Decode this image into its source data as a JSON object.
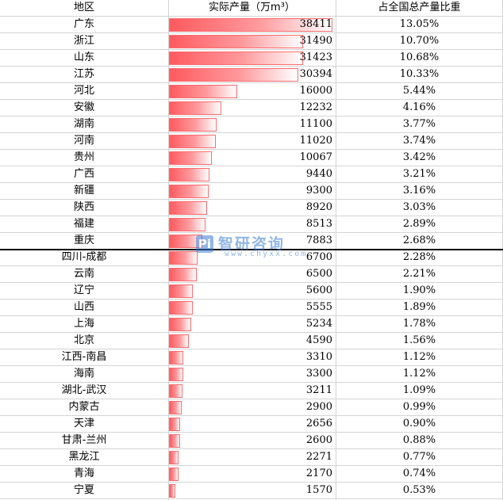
{
  "table": {
    "headers": {
      "region": "地区",
      "output": "实际产量（万m³）",
      "share": "占全国总产量比重"
    }
  },
  "watermark": {
    "logo": "Pi",
    "name": "智研咨询",
    "url": "www.chyxx.com"
  },
  "chart_data": {
    "type": "table",
    "bar_column": "实际产量（万m³）",
    "bar_color": "#ff5a5f",
    "rows": [
      {
        "region": "广东",
        "value": 38411,
        "share": "13.05%"
      },
      {
        "region": "浙江",
        "value": 31490,
        "share": "10.70%"
      },
      {
        "region": "山东",
        "value": 31423,
        "share": "10.68%"
      },
      {
        "region": "江苏",
        "value": 30394,
        "share": "10.33%"
      },
      {
        "region": "河北",
        "value": 16000,
        "share": "5.44%"
      },
      {
        "region": "安徽",
        "value": 12232,
        "share": "4.16%"
      },
      {
        "region": "湖南",
        "value": 11100,
        "share": "3.77%"
      },
      {
        "region": "河南",
        "value": 11020,
        "share": "3.74%"
      },
      {
        "region": "贵州",
        "value": 10067,
        "share": "3.42%"
      },
      {
        "region": "广西",
        "value": 9440,
        "share": "3.21%"
      },
      {
        "region": "新疆",
        "value": 9300,
        "share": "3.16%"
      },
      {
        "region": "陕西",
        "value": 8920,
        "share": "3.03%"
      },
      {
        "region": "福建",
        "value": 8513,
        "share": "2.89%"
      },
      {
        "region": "重庆",
        "value": 7883,
        "share": "2.68%"
      },
      {
        "region": "四川-成都",
        "value": 6700,
        "share": "2.28%"
      },
      {
        "region": "云南",
        "value": 6500,
        "share": "2.21%"
      },
      {
        "region": "辽宁",
        "value": 5600,
        "share": "1.90%"
      },
      {
        "region": "山西",
        "value": 5555,
        "share": "1.89%"
      },
      {
        "region": "上海",
        "value": 5234,
        "share": "1.78%"
      },
      {
        "region": "北京",
        "value": 4590,
        "share": "1.56%"
      },
      {
        "region": "江西-南昌",
        "value": 3310,
        "share": "1.12%"
      },
      {
        "region": "海南",
        "value": 3300,
        "share": "1.12%"
      },
      {
        "region": "湖北-武汉",
        "value": 3211,
        "share": "1.09%"
      },
      {
        "region": "内蒙古",
        "value": 2900,
        "share": "0.99%"
      },
      {
        "region": "天津",
        "value": 2656,
        "share": "0.90%"
      },
      {
        "region": "甘肃-兰州",
        "value": 2600,
        "share": "0.88%"
      },
      {
        "region": "黑龙江",
        "value": 2271,
        "share": "0.77%"
      },
      {
        "region": "青海",
        "value": 2170,
        "share": "0.74%"
      },
      {
        "region": "宁夏",
        "value": 1570,
        "share": "0.53%"
      }
    ]
  }
}
